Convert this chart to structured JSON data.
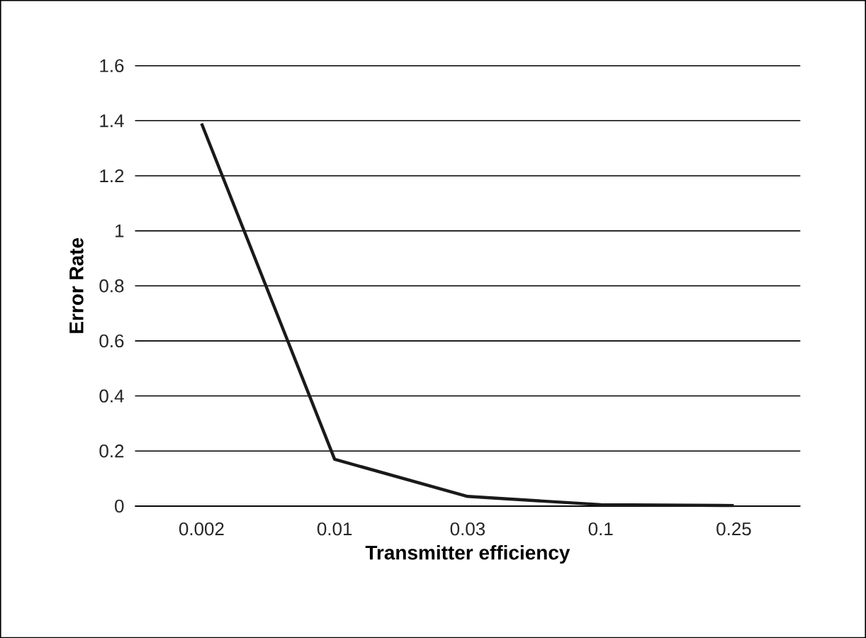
{
  "chart_data": {
    "type": "line",
    "xlabel": "Transmitter efficiency",
    "ylabel": "Error Rate",
    "categories": [
      "0.002",
      "0.01",
      "0.03",
      "0.1",
      "0.25"
    ],
    "series": [
      {
        "color": "#1a1a1a",
        "values": [
          1.39,
          0.17,
          0.035,
          0.005,
          0.002
        ]
      }
    ],
    "ylim": [
      0,
      1.6
    ],
    "yticks": [
      0,
      0.2,
      0.4,
      0.6,
      0.8,
      1,
      1.2,
      1.4,
      1.6
    ],
    "grid": "y",
    "marker": "none",
    "line_style": "solid"
  }
}
